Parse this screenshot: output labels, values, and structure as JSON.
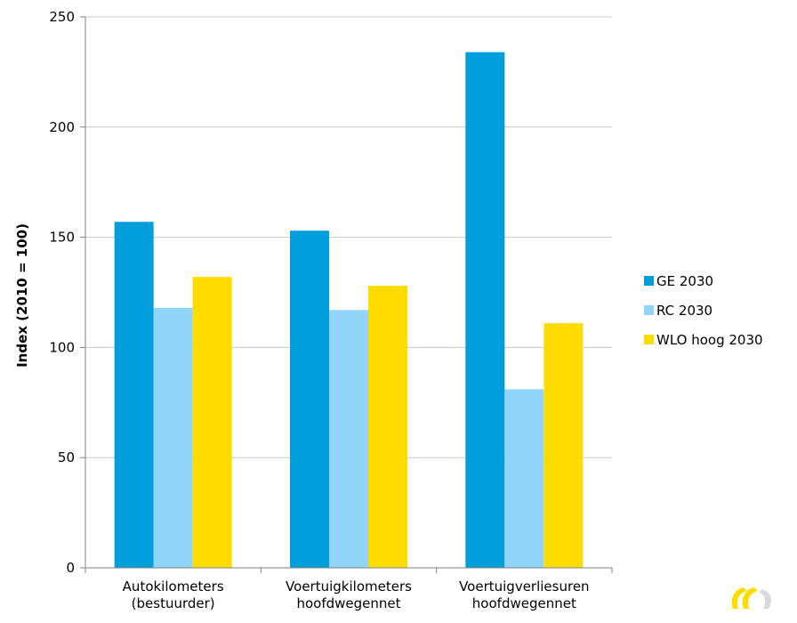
{
  "chart_data": {
    "type": "bar",
    "title": "",
    "xlabel": "",
    "ylabel": "Index (2010 = 100)",
    "ylim": [
      0,
      250
    ],
    "yticks": [
      0,
      50,
      100,
      150,
      200,
      250
    ],
    "grid": true,
    "legend_position": "right",
    "categories": [
      [
        "Autokilometers",
        "(bestuurder)"
      ],
      [
        "Voertuigkilometers",
        "hoofdwegennet"
      ],
      [
        "Voertuigverliesuren",
        "hoofdwegennet"
      ]
    ],
    "series": [
      {
        "name": "GE 2030",
        "color": "#009fdb",
        "values": [
          157,
          153,
          234
        ]
      },
      {
        "name": "RC 2030",
        "color": "#91d5fb",
        "values": [
          118,
          117,
          81
        ]
      },
      {
        "name": "WLO hoog 2030",
        "color": "#ffdc00",
        "values": [
          132,
          128,
          111
        ]
      }
    ]
  }
}
